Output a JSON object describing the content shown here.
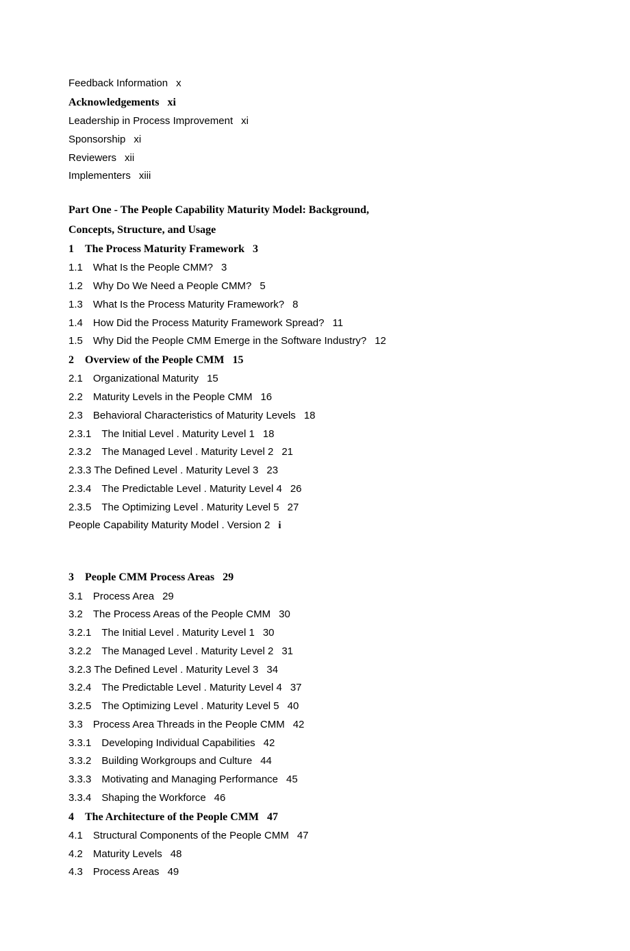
{
  "front": [
    {
      "kind": "sans",
      "text": "Feedback Information",
      "page": "x"
    },
    {
      "kind": "bold",
      "text": "Acknowledgements",
      "page": "xi"
    },
    {
      "kind": "sans",
      "text": "Leadership in Process Improvement",
      "page": "xi"
    },
    {
      "kind": "sans",
      "text": "Sponsorship",
      "page": "xi"
    },
    {
      "kind": "sans",
      "text": "Reviewers",
      "page": "xii"
    },
    {
      "kind": "sans",
      "text": "Implementers",
      "page": "xiii"
    }
  ],
  "partHeading1": "Part One - The People Capability Maturity Model: Background,",
  "partHeading2": "Concepts, Structure, and Usage",
  "block1": [
    {
      "kind": "bold",
      "text": "1 The Process Maturity Framework",
      "page": "3"
    },
    {
      "kind": "sans",
      "text": "1.1 What Is the People CMM?",
      "page": "3"
    },
    {
      "kind": "sans",
      "text": "1.2 Why Do We Need a People CMM?",
      "page": "5"
    },
    {
      "kind": "sans",
      "text": "1.3 What Is the Process Maturity Framework?",
      "page": "8"
    },
    {
      "kind": "sans",
      "text": "1.4 How Did the Process Maturity Framework Spread?",
      "page": "11"
    },
    {
      "kind": "sans",
      "text": "1.5 Why Did the People CMM Emerge in the Software Industry?",
      "page": "12"
    },
    {
      "kind": "bold",
      "text": "2 Overview of the People CMM",
      "page": "15"
    },
    {
      "kind": "sans",
      "text": "2.1 Organizational Maturity",
      "page": "15"
    },
    {
      "kind": "sans",
      "text": "2.2 Maturity Levels in the People CMM",
      "page": "16"
    },
    {
      "kind": "sans",
      "text": "2.3 Behavioral Characteristics of Maturity Levels",
      "page": "18"
    },
    {
      "kind": "sans",
      "text": "2.3.1 The Initial Level . Maturity Level 1",
      "page": "18"
    },
    {
      "kind": "sans",
      "text": "2.3.2 The Managed Level . Maturity Level 2",
      "page": "21"
    },
    {
      "kind": "sans",
      "text": "2.3.3 The Defined Level . Maturity Level 3",
      "page": "23"
    },
    {
      "kind": "sans",
      "text": "2.3.4 The Predictable Level . Maturity Level 4",
      "page": "26"
    },
    {
      "kind": "sans",
      "text": "2.3.5 The Optimizing Level . Maturity Level 5",
      "page": "27"
    }
  ],
  "footer": {
    "text": "People Capability Maturity Model . Version 2",
    "page": "i"
  },
  "block2": [
    {
      "kind": "bold",
      "text": "3 People CMM Process Areas",
      "page": "29"
    },
    {
      "kind": "sans",
      "text": "3.1 Process Area",
      "page": "29"
    },
    {
      "kind": "sans",
      "text": "3.2 The Process Areas of the People CMM",
      "page": "30"
    },
    {
      "kind": "sans",
      "text": "3.2.1 The Initial Level . Maturity Level 1",
      "page": "30"
    },
    {
      "kind": "sans",
      "text": "3.2.2 The Managed Level . Maturity Level 2",
      "page": "31"
    },
    {
      "kind": "sans",
      "text": "3.2.3 The Defined Level . Maturity Level 3",
      "page": "34"
    },
    {
      "kind": "sans",
      "text": "3.2.4 The Predictable Level . Maturity Level 4",
      "page": "37"
    },
    {
      "kind": "sans",
      "text": "3.2.5 The Optimizing Level . Maturity Level 5",
      "page": "40"
    },
    {
      "kind": "sans",
      "text": "3.3 Process Area Threads in the People CMM",
      "page": "42"
    },
    {
      "kind": "sans",
      "text": "3.3.1 Developing Individual Capabilities",
      "page": "42"
    },
    {
      "kind": "sans",
      "text": "3.3.2 Building Workgroups and Culture",
      "page": "44"
    },
    {
      "kind": "sans",
      "text": "3.3.3 Motivating and Managing Performance",
      "page": "45"
    },
    {
      "kind": "sans",
      "text": "3.3.4 Shaping the Workforce",
      "page": "46"
    },
    {
      "kind": "bold",
      "text": "4 The Architecture of the People CMM",
      "page": "47"
    },
    {
      "kind": "sans",
      "text": "4.1 Structural Components of the People CMM",
      "page": "47"
    },
    {
      "kind": "sans",
      "text": "4.2 Maturity Levels",
      "page": "48"
    },
    {
      "kind": "sans",
      "text": "4.3 Process Areas",
      "page": "49"
    }
  ]
}
